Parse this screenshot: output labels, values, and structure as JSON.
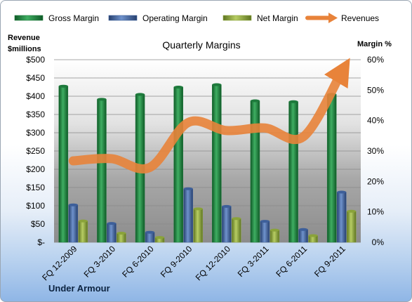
{
  "chart_data": {
    "type": "bar",
    "title": "Quarterly Margins",
    "footer": "Under Armour",
    "categories": [
      "FQ 12-2009",
      "FQ 3-2010",
      "FQ 6-2010",
      "FQ 9-2010",
      "FQ 12-2010",
      "FQ 3-2011",
      "FQ 6-2011",
      "FQ 9-2011"
    ],
    "left_axis": {
      "label_line1": "Revenue",
      "label_line2": "$millions",
      "range": [
        0,
        500
      ],
      "ticks": [
        "$-",
        "$50",
        "$100",
        "$150",
        "$200",
        "$250",
        "$300",
        "$350",
        "$400",
        "$450",
        "$500"
      ]
    },
    "right_axis": {
      "label": "Margin %",
      "range": [
        0,
        60
      ],
      "ticks": [
        "0%",
        "10%",
        "20%",
        "30%",
        "40%",
        "50%",
        "60%"
      ]
    },
    "series": [
      {
        "name": "Gross Margin",
        "kind": "bar",
        "axis": "right",
        "color": "#1e7a3c",
        "values": [
          51.3,
          47.0,
          48.6,
          51.0,
          51.8,
          46.5,
          46.2,
          48.6
        ]
      },
      {
        "name": "Operating Margin",
        "kind": "bar",
        "axis": "right",
        "color": "#3d5f9a",
        "values": [
          12.3,
          6.2,
          3.3,
          17.6,
          11.8,
          6.9,
          4.2,
          16.5
        ]
      },
      {
        "name": "Net Margin",
        "kind": "bar",
        "axis": "right",
        "color": "#8aa33a",
        "values": [
          7.0,
          3.0,
          1.6,
          11.0,
          7.8,
          4.0,
          2.2,
          10.2
        ]
      },
      {
        "name": "Revenues",
        "kind": "line",
        "axis": "left",
        "color": "#e8833a",
        "values": [
          223,
          229,
          205,
          328,
          306,
          313,
          289,
          466
        ]
      }
    ],
    "grid": true,
    "legend_position": "top"
  }
}
